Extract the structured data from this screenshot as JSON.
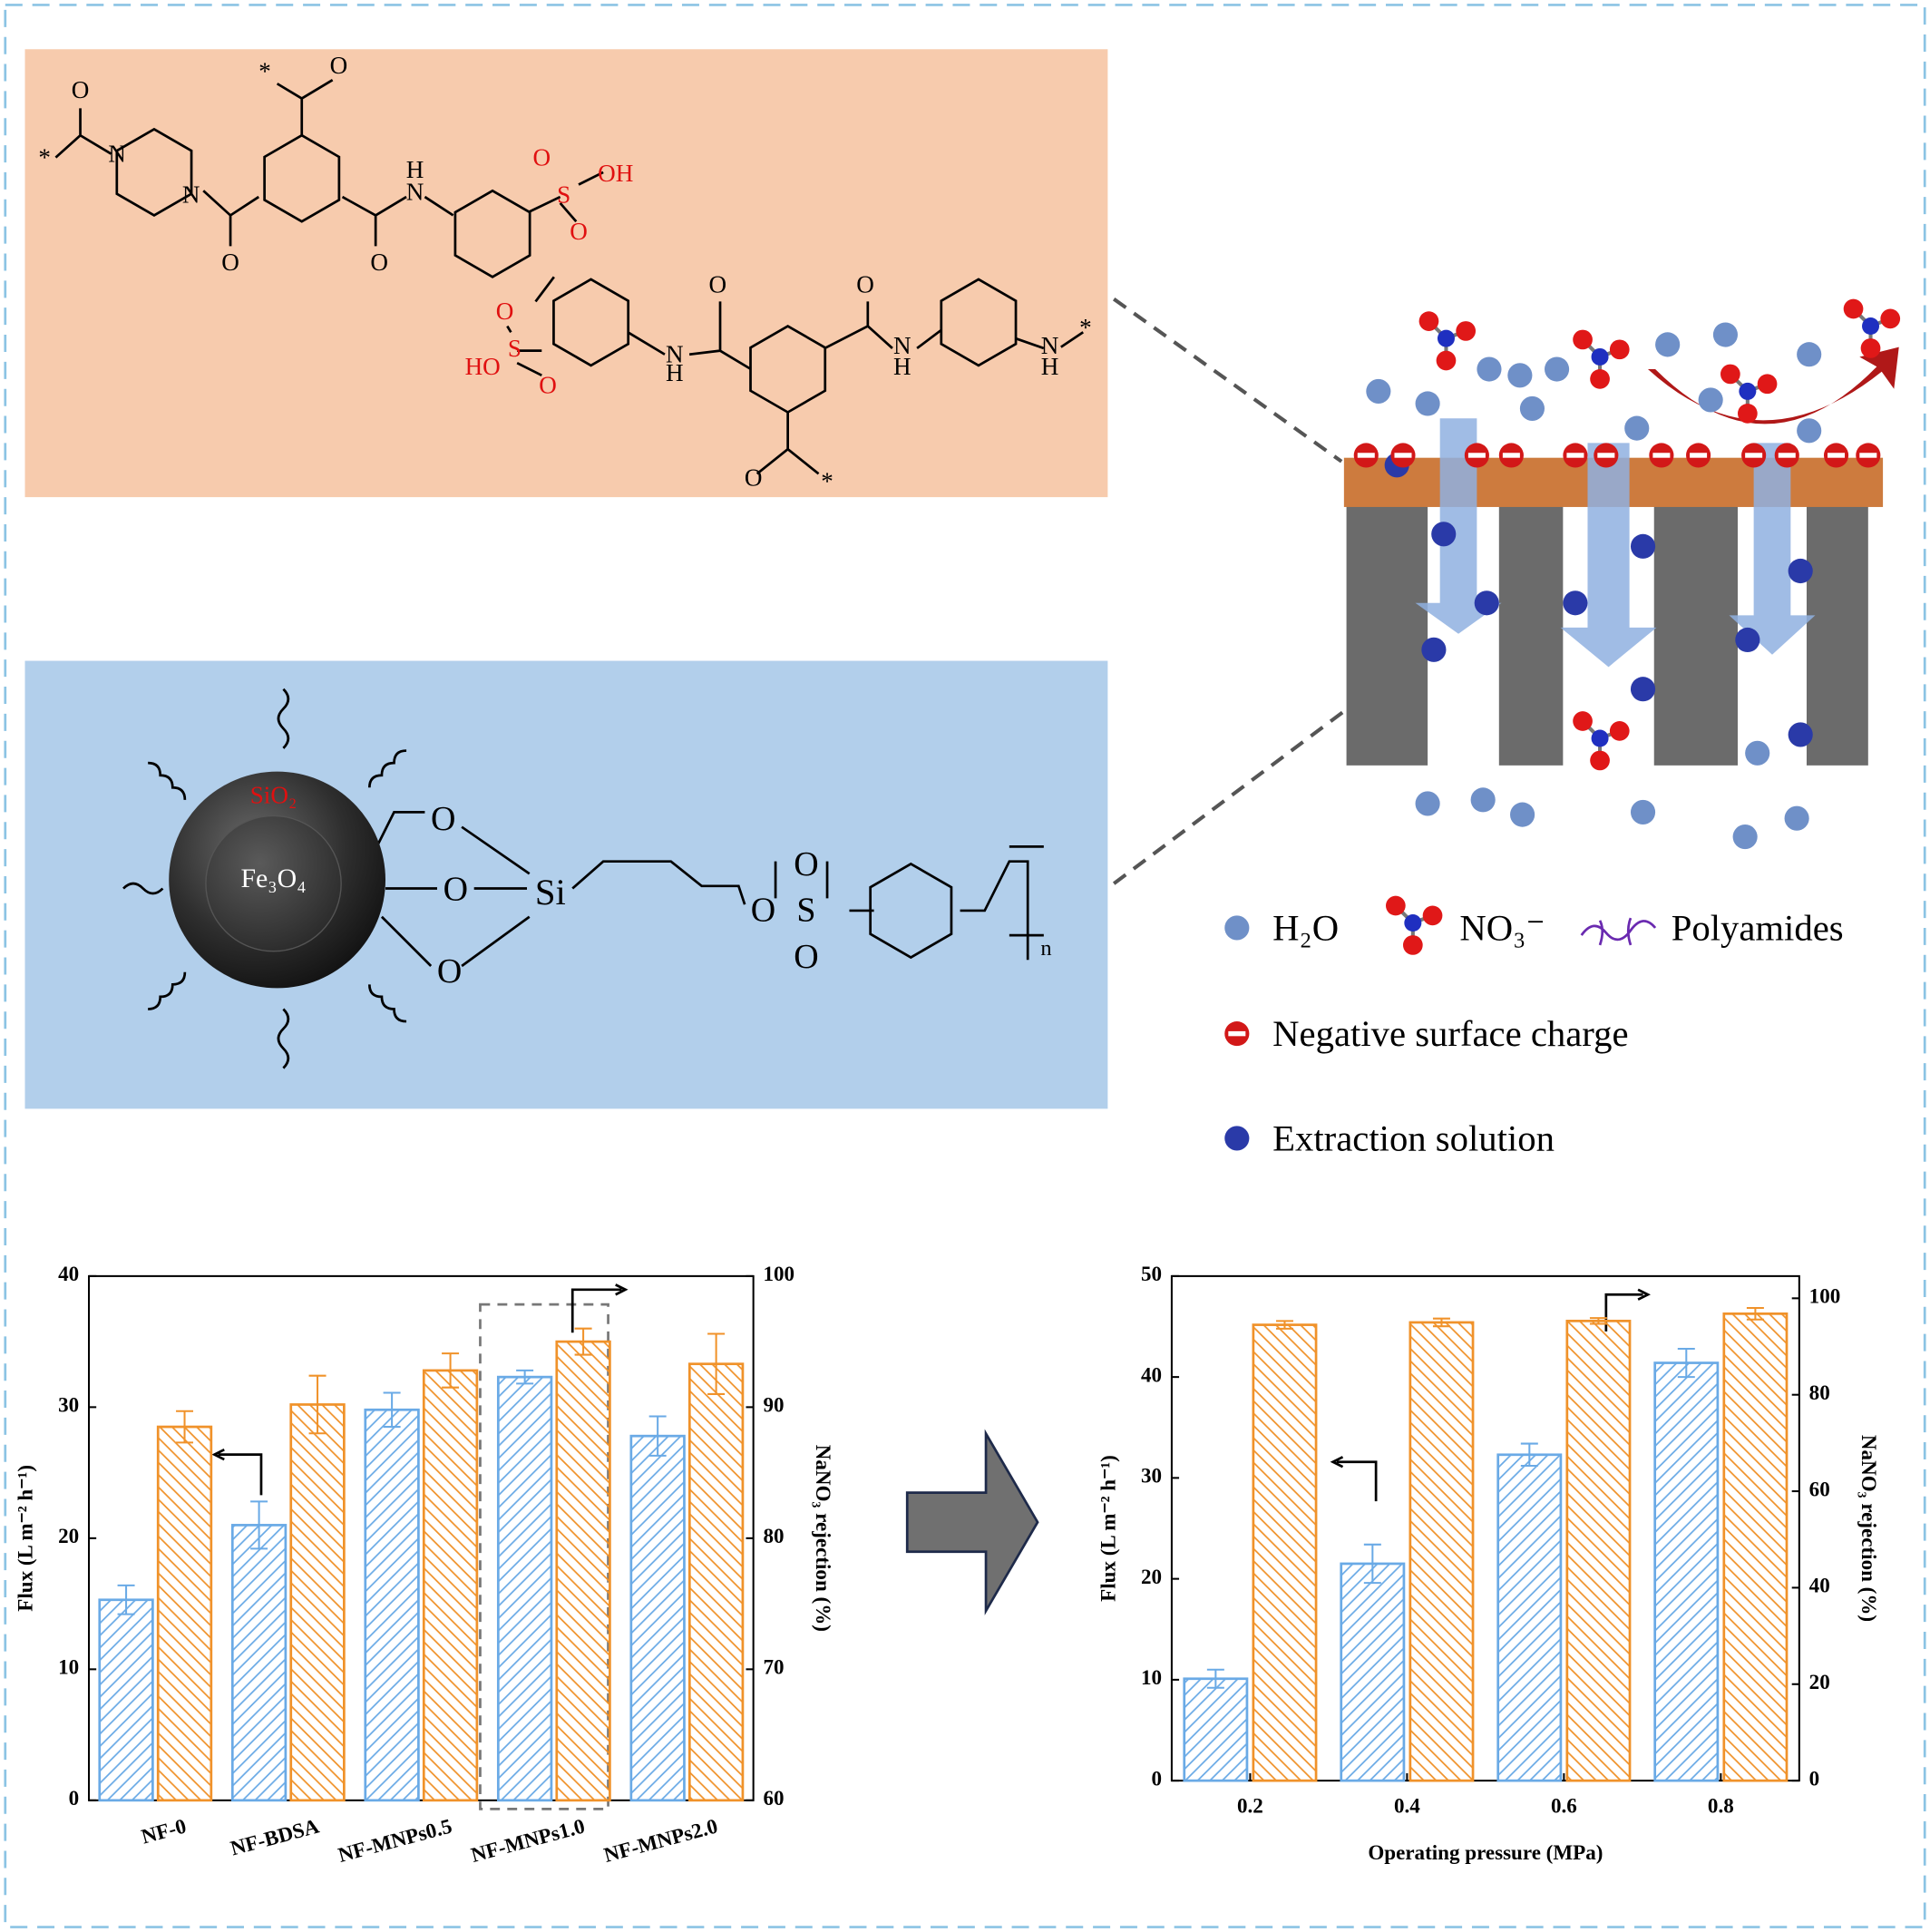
{
  "particle": {
    "shell": "SiO₂",
    "core": "Fe₃O₄"
  },
  "linker_atoms": [
    "O",
    "O",
    "O",
    "Si",
    "O",
    "S",
    "O",
    "O",
    "n"
  ],
  "polymer_atoms": [
    "*",
    "O",
    "N",
    "N",
    "O",
    "*",
    "O",
    "O",
    "H",
    "N",
    "S",
    "OH",
    "O",
    "O",
    "S",
    "HO",
    "O",
    "O",
    "N",
    "H",
    "O",
    "O",
    "N",
    "H",
    "N",
    "H",
    "*",
    "O",
    "*"
  ],
  "legend": {
    "water": "H₂O",
    "nitrate": "NO₃⁻",
    "polyamide": "Polyamides",
    "charge": "Negative surface charge",
    "extraction": "Extraction solution"
  },
  "chart_data": [
    {
      "type": "bar",
      "ylabel": "Flux (L m⁻² h⁻¹)",
      "y2label": "NaNO₃ rejection (%)",
      "categories": [
        "NF-0",
        "NF-BDSA",
        "NF-MNPs0.5",
        "NF-MNPs1.0",
        "NF-MNPs2.0"
      ],
      "ylim": [
        0,
        40
      ],
      "yticks": [
        0,
        10,
        20,
        30,
        40
      ],
      "y2lim": [
        60,
        100
      ],
      "y2ticks": [
        60,
        70,
        80,
        90,
        100
      ],
      "series": [
        {
          "color": "#6aaae6",
          "values": [
            15.3,
            21,
            29.8,
            32.3,
            27.8
          ],
          "errors": [
            1.1,
            1.8,
            1.3,
            0.5,
            1.5
          ]
        },
        {
          "color": "#f0922a",
          "axis": "y2",
          "values": [
            88.5,
            90.2,
            92.8,
            95,
            93.3
          ],
          "errors": [
            1.2,
            2.2,
            1.3,
            1,
            2.3
          ]
        }
      ]
    },
    {
      "type": "bar",
      "xlabel": "Operating pressure (MPa)",
      "ylabel": "Flux (L m⁻² h⁻¹)",
      "y2label": "NaNO₃ rejection (%)",
      "categories": [
        "0.2",
        "0.4",
        "0.6",
        "0.8"
      ],
      "ylim": [
        0,
        50
      ],
      "yticks": [
        0,
        10,
        20,
        30,
        40,
        50
      ],
      "y2lim": [
        0,
        104.6
      ],
      "y2ticks": [
        0,
        20,
        40,
        60,
        80,
        100
      ],
      "series": [
        {
          "color": "#6aaae6",
          "values": [
            10.1,
            21.5,
            32.3,
            41.4
          ],
          "errors": [
            0.9,
            1.9,
            1.1,
            1.4
          ]
        },
        {
          "color": "#f0922a",
          "axis": "y2",
          "values": [
            94.5,
            95,
            95.3,
            96.8
          ],
          "errors": [
            0.8,
            0.8,
            0.6,
            1.2
          ]
        }
      ]
    }
  ]
}
